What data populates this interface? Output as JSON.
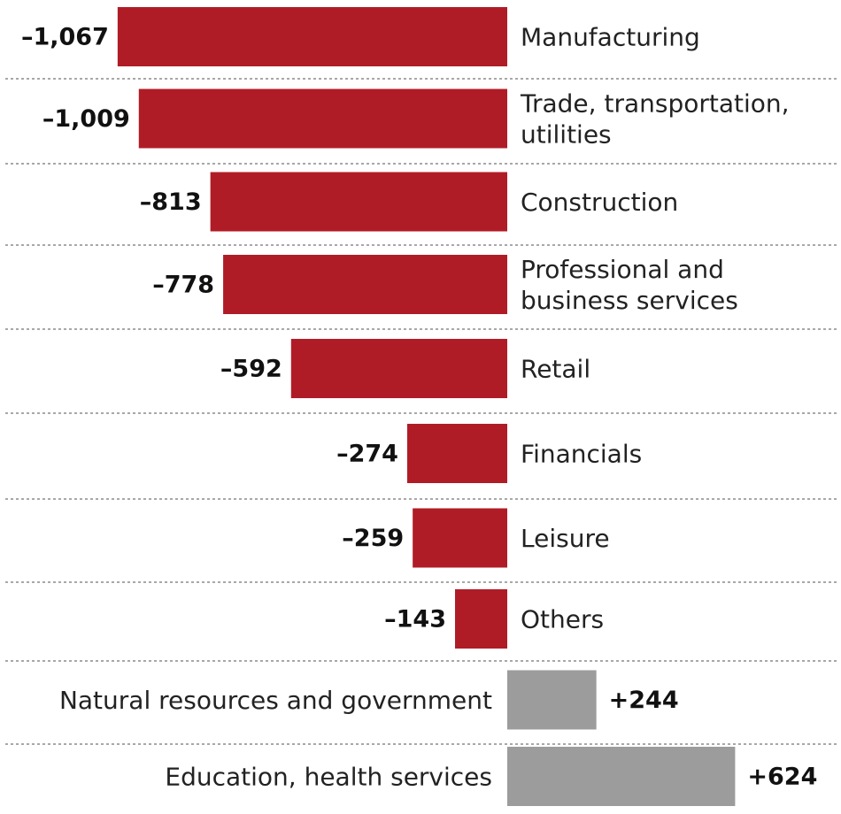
{
  "chart_data": {
    "type": "bar",
    "orientation": "horizontal",
    "categories": [
      "Manufacturing",
      "Trade, transportation, utilities",
      "Construction",
      "Professional and business services",
      "Retail",
      "Financials",
      "Leisure",
      "Others",
      "Natural resources and government",
      "Education, health services"
    ],
    "category_lines": [
      [
        "Manufacturing"
      ],
      [
        "Trade, transportation,",
        "utilities"
      ],
      [
        "Construction"
      ],
      [
        "Professional and",
        "business services"
      ],
      [
        "Retail"
      ],
      [
        "Financials"
      ],
      [
        "Leisure"
      ],
      [
        "Others"
      ],
      [
        "Natural resources and government"
      ],
      [
        "Education, health services"
      ]
    ],
    "values": [
      -1067,
      -1009,
      -813,
      -778,
      -592,
      -274,
      -259,
      -143,
      244,
      624
    ],
    "value_labels": [
      "–1,067",
      "–1,009",
      "–813",
      "–778",
      "–592",
      "–274",
      "–259",
      "–143",
      "+244",
      "+624"
    ],
    "colors": {
      "negative": "#b01c26",
      "positive": "#9c9c9c"
    },
    "grid": "dotted row separators",
    "legend": "none"
  }
}
